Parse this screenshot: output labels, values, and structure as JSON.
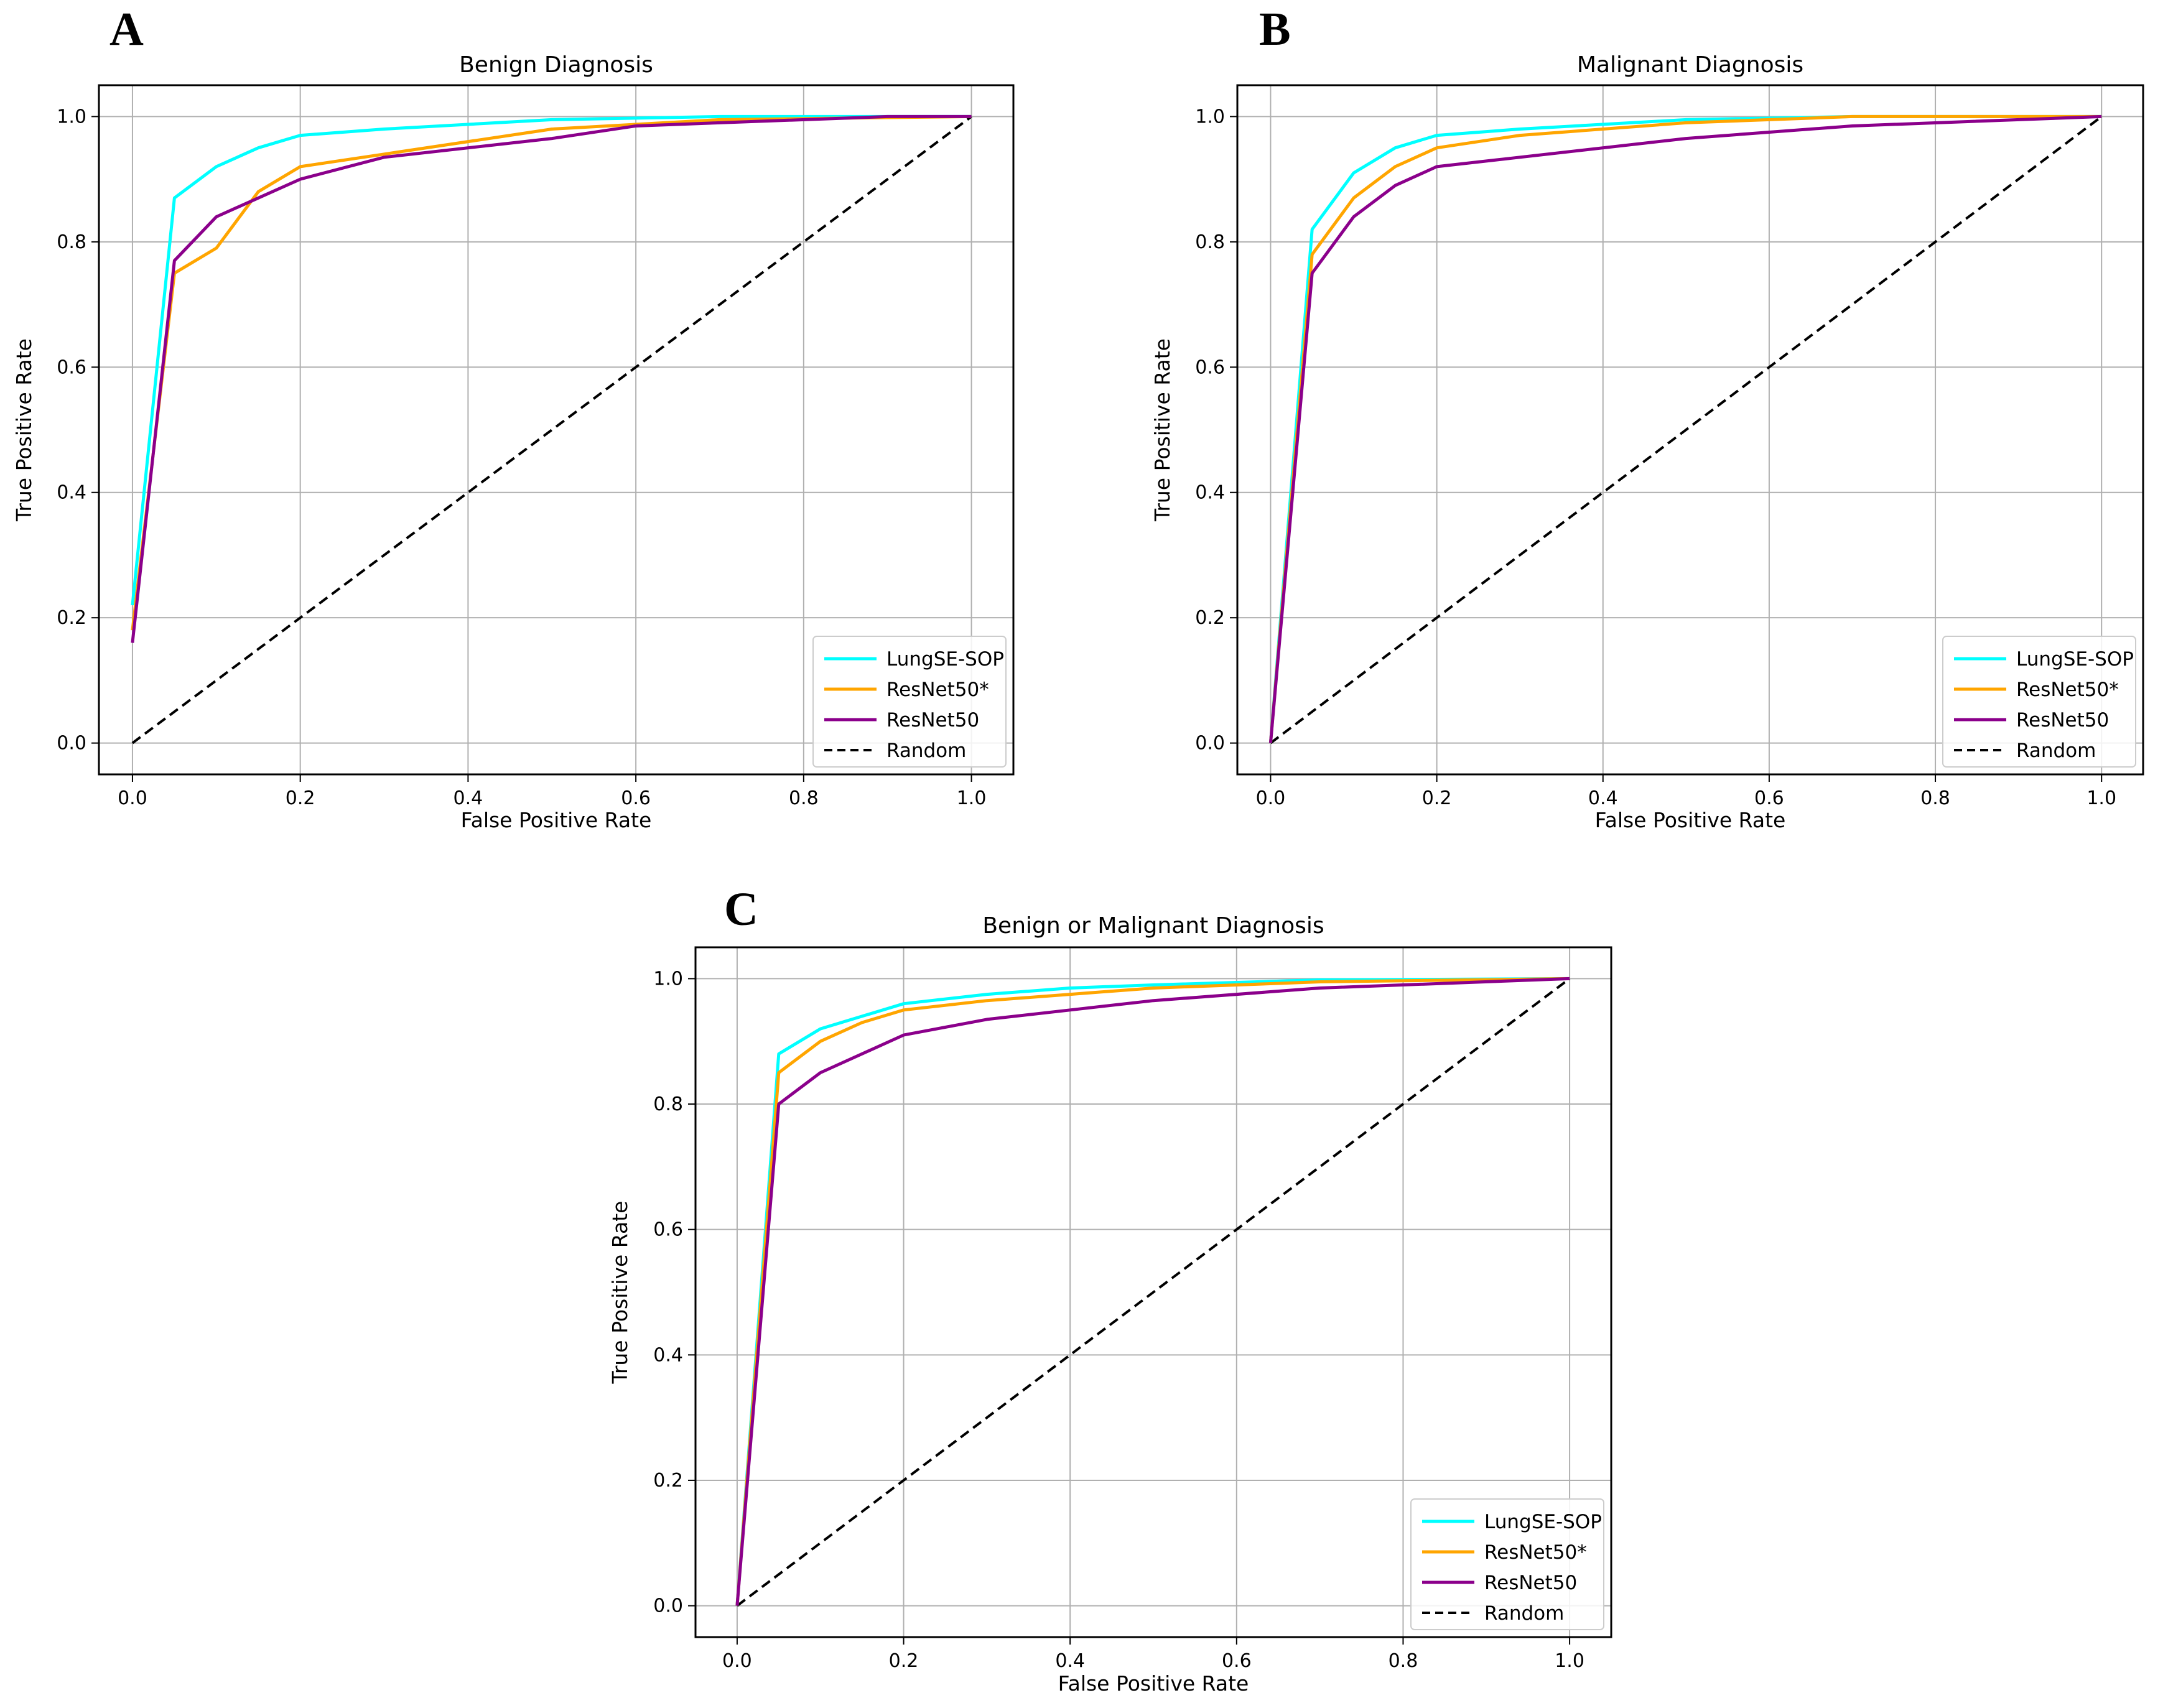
{
  "figure": {
    "panel_letters": [
      "A",
      "B",
      "C"
    ]
  },
  "colors": {
    "LungSE-SOP": "#00ffff",
    "ResNet50*": "#ffa500",
    "ResNet50": "#8b008b",
    "Random": "#000000",
    "grid": "#b0b0b0"
  },
  "chart_data": [
    {
      "type": "line",
      "panel": "A",
      "title": "Benign Diagnosis",
      "xlabel": "False Positive Rate",
      "ylabel": "True Positive Rate",
      "xlim": [
        -0.04,
        1.05
      ],
      "ylim": [
        -0.05,
        1.05
      ],
      "xticks": [
        "0.0",
        "0.2",
        "0.4",
        "0.6",
        "0.8",
        "1.0"
      ],
      "yticks": [
        "0.0",
        "0.2",
        "0.4",
        "0.6",
        "0.8",
        "1.0"
      ],
      "grid": true,
      "legend_position": "lower-right",
      "series": [
        {
          "name": "LungSE-SOP",
          "color": "#00ffff",
          "dashed": false,
          "x": [
            0,
            0.05,
            0.1,
            0.15,
            0.2,
            0.3,
            0.5,
            0.7,
            1.0
          ],
          "y": [
            0.22,
            0.87,
            0.92,
            0.95,
            0.97,
            0.98,
            0.995,
            1.0,
            1.0
          ]
        },
        {
          "name": "ResNet50*",
          "color": "#ffa500",
          "dashed": false,
          "x": [
            0,
            0.05,
            0.1,
            0.15,
            0.2,
            0.3,
            0.5,
            0.7,
            1.0
          ],
          "y": [
            0.18,
            0.75,
            0.79,
            0.88,
            0.92,
            0.94,
            0.98,
            0.995,
            1.0
          ]
        },
        {
          "name": "ResNet50",
          "color": "#8b008b",
          "dashed": false,
          "x": [
            0,
            0.05,
            0.1,
            0.15,
            0.2,
            0.3,
            0.5,
            0.6,
            0.7,
            0.9,
            1.0
          ],
          "y": [
            0.16,
            0.77,
            0.84,
            0.87,
            0.9,
            0.935,
            0.965,
            0.985,
            0.99,
            1.0,
            1.0
          ]
        },
        {
          "name": "Random",
          "color": "#000000",
          "dashed": true,
          "x": [
            0,
            1
          ],
          "y": [
            0,
            1
          ]
        }
      ]
    },
    {
      "type": "line",
      "panel": "B",
      "title": "Malignant Diagnosis",
      "xlabel": "False Positive Rate",
      "ylabel": "True Positive Rate",
      "xlim": [
        -0.04,
        1.05
      ],
      "ylim": [
        -0.05,
        1.05
      ],
      "xticks": [
        "0.0",
        "0.2",
        "0.4",
        "0.6",
        "0.8",
        "1.0"
      ],
      "yticks": [
        "0.0",
        "0.2",
        "0.4",
        "0.6",
        "0.8",
        "1.0"
      ],
      "grid": true,
      "legend_position": "lower-right",
      "series": [
        {
          "name": "LungSE-SOP",
          "color": "#00ffff",
          "dashed": false,
          "x": [
            0,
            0.05,
            0.1,
            0.15,
            0.2,
            0.3,
            0.5,
            0.7,
            1.0
          ],
          "y": [
            0,
            0.82,
            0.91,
            0.95,
            0.97,
            0.98,
            0.995,
            1.0,
            1.0
          ]
        },
        {
          "name": "ResNet50*",
          "color": "#ffa500",
          "dashed": false,
          "x": [
            0,
            0.05,
            0.1,
            0.15,
            0.2,
            0.3,
            0.5,
            0.7,
            1.0
          ],
          "y": [
            0,
            0.78,
            0.87,
            0.92,
            0.95,
            0.97,
            0.99,
            1.0,
            1.0
          ]
        },
        {
          "name": "ResNet50",
          "color": "#8b008b",
          "dashed": false,
          "x": [
            0,
            0.05,
            0.1,
            0.15,
            0.2,
            0.3,
            0.5,
            0.7,
            1.0
          ],
          "y": [
            0,
            0.75,
            0.84,
            0.89,
            0.92,
            0.935,
            0.965,
            0.985,
            1.0
          ]
        },
        {
          "name": "Random",
          "color": "#000000",
          "dashed": true,
          "x": [
            0,
            1
          ],
          "y": [
            0,
            1
          ]
        }
      ]
    },
    {
      "type": "line",
      "panel": "C",
      "title": "Benign or Malignant Diagnosis",
      "xlabel": "False Positive Rate",
      "ylabel": "True Positive Rate",
      "xlim": [
        -0.05,
        1.05
      ],
      "ylim": [
        -0.05,
        1.05
      ],
      "xticks": [
        "0.0",
        "0.2",
        "0.4",
        "0.6",
        "0.8",
        "1.0"
      ],
      "yticks": [
        "0.0",
        "0.2",
        "0.4",
        "0.6",
        "0.8",
        "1.0"
      ],
      "grid": true,
      "legend_position": "lower-right",
      "series": [
        {
          "name": "LungSE-SOP",
          "color": "#00ffff",
          "dashed": false,
          "x": [
            0,
            0.05,
            0.1,
            0.15,
            0.2,
            0.3,
            0.4,
            0.5,
            0.7,
            1.0
          ],
          "y": [
            0,
            0.88,
            0.92,
            0.94,
            0.96,
            0.975,
            0.985,
            0.99,
            0.998,
            1.0
          ]
        },
        {
          "name": "ResNet50*",
          "color": "#ffa500",
          "dashed": false,
          "x": [
            0,
            0.05,
            0.1,
            0.15,
            0.2,
            0.3,
            0.4,
            0.5,
            0.7,
            1.0
          ],
          "y": [
            0,
            0.85,
            0.9,
            0.93,
            0.95,
            0.965,
            0.975,
            0.985,
            0.995,
            1.0
          ]
        },
        {
          "name": "ResNet50",
          "color": "#8b008b",
          "dashed": false,
          "x": [
            0,
            0.05,
            0.1,
            0.2,
            0.3,
            0.4,
            0.5,
            0.7,
            1.0
          ],
          "y": [
            0,
            0.8,
            0.85,
            0.91,
            0.935,
            0.95,
            0.965,
            0.985,
            1.0
          ]
        },
        {
          "name": "Random",
          "color": "#000000",
          "dashed": true,
          "x": [
            0,
            1
          ],
          "y": [
            0,
            1
          ]
        }
      ]
    }
  ]
}
